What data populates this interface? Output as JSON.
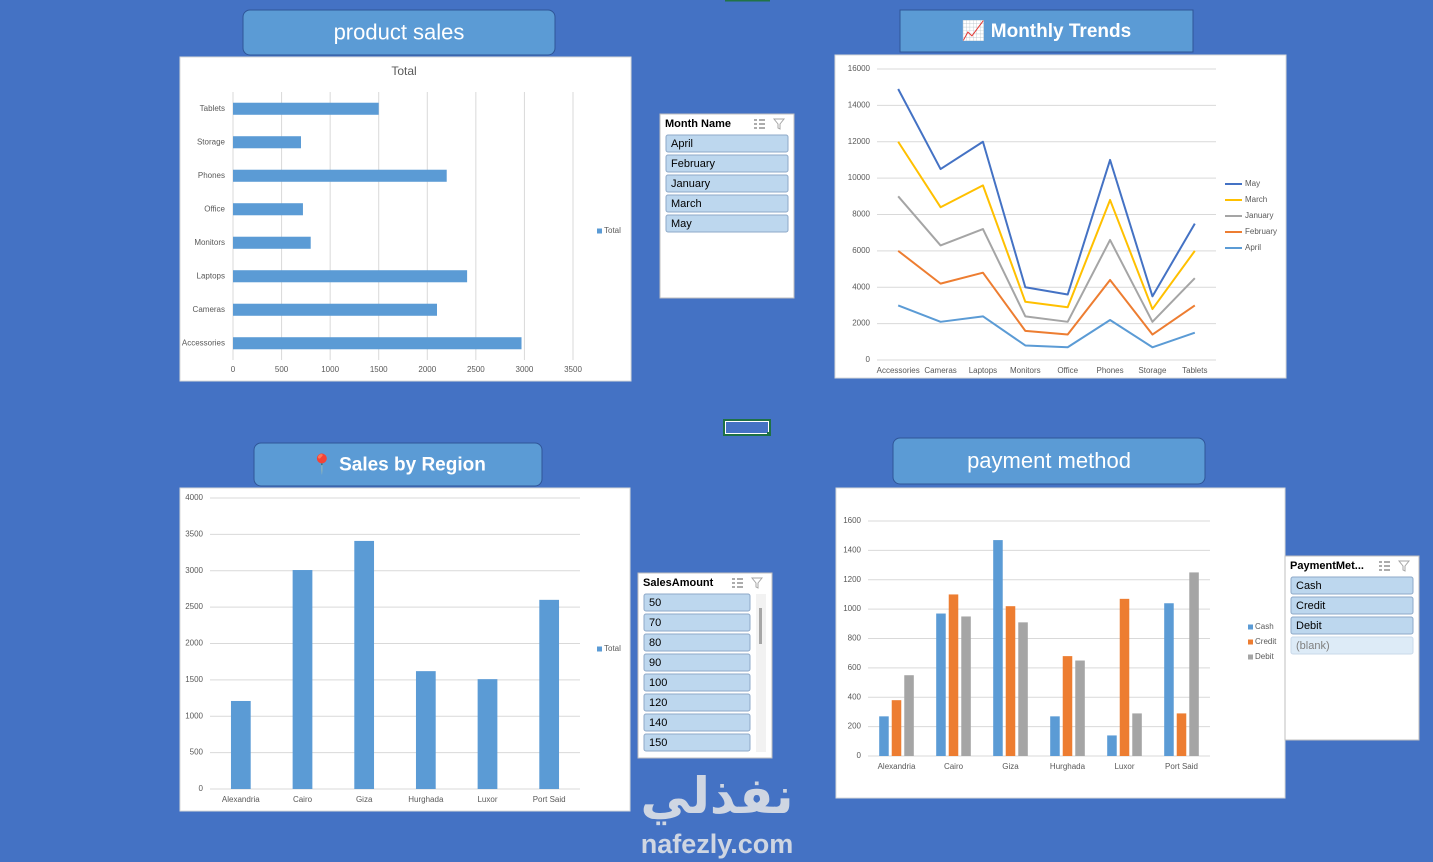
{
  "chart_data": [
    {
      "type": "bar",
      "horizontal": true,
      "header": "product sales",
      "title": "Total",
      "categories": [
        "Accessories",
        "Cameras",
        "Laptops",
        "Monitors",
        "Office",
        "Phones",
        "Storage",
        "Tablets"
      ],
      "series": [
        {
          "name": "Total",
          "color": "#5b9bd5",
          "values": [
            2970,
            2100,
            2410,
            800,
            720,
            2200,
            700,
            1500
          ]
        }
      ],
      "xlim": [
        0,
        3500
      ],
      "xticks": [
        0,
        500,
        1000,
        1500,
        2000,
        2500,
        3000,
        3500
      ],
      "grid": true,
      "legend": "right"
    },
    {
      "type": "line",
      "header": "📈 Monthly Trends",
      "categories": [
        "Accessories",
        "Cameras",
        "Laptops",
        "Monitors",
        "Office",
        "Phones",
        "Storage",
        "Tablets"
      ],
      "series": [
        {
          "name": "May",
          "color": "#4472c4",
          "values": [
            14900,
            10500,
            12000,
            4000,
            3600,
            11000,
            3500,
            7500
          ]
        },
        {
          "name": "March",
          "color": "#ffc000",
          "values": [
            12000,
            8400,
            9600,
            3200,
            2900,
            8800,
            2800,
            6000
          ]
        },
        {
          "name": "January",
          "color": "#a5a5a5",
          "values": [
            9000,
            6300,
            7200,
            2400,
            2100,
            6600,
            2100,
            4500
          ]
        },
        {
          "name": "February",
          "color": "#ed7d31",
          "values": [
            6000,
            4200,
            4800,
            1600,
            1400,
            4400,
            1400,
            3000
          ]
        },
        {
          "name": "April",
          "color": "#5b9bd5",
          "values": [
            3000,
            2100,
            2400,
            800,
            700,
            2200,
            700,
            1500
          ]
        }
      ],
      "ylim": [
        0,
        16000
      ],
      "yticks": [
        0,
        2000,
        4000,
        6000,
        8000,
        10000,
        12000,
        14000,
        16000
      ],
      "grid": true,
      "legend": "right"
    },
    {
      "type": "bar",
      "header": "📍 Sales by Region",
      "categories": [
        "Alexandria",
        "Cairo",
        "Giza",
        "Hurghada",
        "Luxor",
        "Port Said"
      ],
      "series": [
        {
          "name": "Total",
          "color": "#5b9bd5",
          "values": [
            1210,
            3010,
            3410,
            1620,
            1510,
            2600
          ]
        }
      ],
      "ylim": [
        0,
        4000
      ],
      "yticks": [
        0,
        500,
        1000,
        1500,
        2000,
        2500,
        3000,
        3500,
        4000
      ],
      "grid": true,
      "legend": "right"
    },
    {
      "type": "bar",
      "header": "payment method",
      "categories": [
        "Alexandria",
        "Cairo",
        "Giza",
        "Hurghada",
        "Luxor",
        "Port Said"
      ],
      "series": [
        {
          "name": "Cash",
          "color": "#5b9bd5",
          "values": [
            270,
            970,
            1470,
            270,
            140,
            1040
          ]
        },
        {
          "name": "Credit",
          "color": "#ed7d31",
          "values": [
            380,
            1100,
            1020,
            680,
            1070,
            290
          ]
        },
        {
          "name": "Debit",
          "color": "#a5a5a5",
          "values": [
            550,
            950,
            910,
            650,
            290,
            1250
          ]
        }
      ],
      "ylim": [
        0,
        1600
      ],
      "yticks": [
        0,
        200,
        400,
        600,
        800,
        1000,
        1200,
        1400,
        1600
      ],
      "grid": true,
      "legend": "right"
    }
  ],
  "slicers": [
    {
      "title": "Month Name",
      "items": [
        "April",
        "February",
        "January",
        "March",
        "May"
      ]
    },
    {
      "title": "SalesAmount",
      "items": [
        50,
        70,
        80,
        90,
        100,
        120,
        140,
        150
      ]
    },
    {
      "title": "PaymentMet...",
      "items": [
        "Cash",
        "Credit",
        "Debit",
        "(blank)"
      ]
    }
  ],
  "watermark": {
    "arabic": "نفذلي",
    "latin": "nafezly.com"
  }
}
